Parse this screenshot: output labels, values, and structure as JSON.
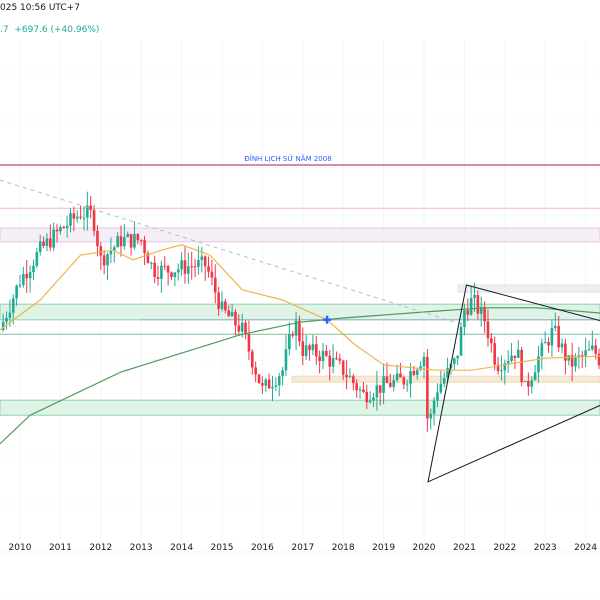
{
  "header": {
    "datetime": "025 10:56 UTC+7",
    "change_prefix": ".7",
    "change": "+697.6 (+40.96%)"
  },
  "colors": {
    "up": "#22ab94",
    "down": "#f23645",
    "ma_fast": "#f0b44c",
    "ma_slow": "#4c9a5c",
    "ath_line": "#b2185a",
    "ath_label": "#2962ff",
    "zone_green": "#dff3e6",
    "zone_pink": "#f5eef7",
    "zone_orange": "#f7d9a8",
    "triangle": "#131722",
    "trend_dashed": "#b8bcc6"
  },
  "chart_data": {
    "type": "candlestick",
    "title": "",
    "note": "relative index units, estimated; no price axis visible",
    "xlabel": "",
    "ylabel": "",
    "xlim": [
      2009.5,
      2025.0
    ],
    "ylim": [
      0,
      100
    ],
    "x_ticks": [
      "2010",
      "2011",
      "2012",
      "2013",
      "2014",
      "2015",
      "2016",
      "2017",
      "2018",
      "2019",
      "2020",
      "2021",
      "2022",
      "2023",
      "2024"
    ],
    "price_path": [
      [
        2009.5,
        45
      ],
      [
        2010.0,
        53.3
      ],
      [
        2010.5,
        58.3
      ],
      [
        2011.0,
        61.7
      ],
      [
        2011.5,
        64.5
      ],
      [
        2011.8,
        64.2
      ],
      [
        2012.0,
        56.7
      ],
      [
        2012.5,
        60
      ],
      [
        2013.0,
        60
      ],
      [
        2013.3,
        55
      ],
      [
        2013.7,
        55
      ],
      [
        2014.3,
        55.8
      ],
      [
        2014.6,
        55.8
      ],
      [
        2015.0,
        48.3
      ],
      [
        2015.5,
        45
      ],
      [
        2016.0,
        35
      ],
      [
        2016.5,
        38.3
      ],
      [
        2016.8,
        46.7
      ],
      [
        2017.0,
        41.7
      ],
      [
        2017.5,
        40.8
      ],
      [
        2018.0,
        38.3
      ],
      [
        2018.5,
        34.2
      ],
      [
        2019.0,
        35.8
      ],
      [
        2019.5,
        36.7
      ],
      [
        2020.0,
        40.8
      ],
      [
        2020.1,
        28.3
      ],
      [
        2020.3,
        35
      ],
      [
        2020.8,
        40
      ],
      [
        2021.0,
        48.3
      ],
      [
        2021.2,
        50
      ],
      [
        2021.5,
        46.7
      ],
      [
        2021.8,
        39.2
      ],
      [
        2022.3,
        41.7
      ],
      [
        2022.5,
        35
      ],
      [
        2022.8,
        40
      ],
      [
        2023.2,
        45
      ],
      [
        2023.6,
        39.2
      ],
      [
        2024.2,
        41.7
      ],
      [
        2024.5,
        38.3
      ],
      [
        2024.95,
        45
      ]
    ],
    "series": [
      {
        "name": "MA fast",
        "points": [
          [
            2009.5,
            45
          ],
          [
            2010.5,
            50
          ],
          [
            2011.5,
            57.5
          ],
          [
            2012.3,
            58.3
          ],
          [
            2012.8,
            56.7
          ],
          [
            2013.5,
            58.3
          ],
          [
            2014.0,
            59.2
          ],
          [
            2014.7,
            57.5
          ],
          [
            2015.5,
            51.7
          ],
          [
            2016.5,
            50
          ],
          [
            2017.6,
            46.7
          ],
          [
            2018.3,
            42.5
          ],
          [
            2019.0,
            39.2
          ],
          [
            2020.3,
            38.3
          ],
          [
            2021.2,
            38.3
          ],
          [
            2022.0,
            39.2
          ],
          [
            2023.0,
            40.3
          ],
          [
            2024.95,
            40.8
          ]
        ]
      },
      {
        "name": "MA slow",
        "points": [
          [
            2009.5,
            26
          ],
          [
            2010.25,
            30.8
          ],
          [
            2012.5,
            38
          ],
          [
            2015.45,
            44.2
          ],
          [
            2016.93,
            46.3
          ],
          [
            2018.0,
            47
          ],
          [
            2020.0,
            48
          ],
          [
            2021.5,
            48.7
          ],
          [
            2022.8,
            48.7
          ],
          [
            2024.95,
            47.5
          ]
        ]
      }
    ],
    "annotations": {
      "ath_label": "ĐỈNH LỊCH SỬ NĂM 2008",
      "ath_level": 72.5,
      "resistance_line": 65.3,
      "pink_zone": [
        59.7,
        62
      ],
      "green_zone_upper": [
        46.7,
        49.3
      ],
      "mid_line": 44.3,
      "orange_zone": [
        36.3,
        37.3
      ],
      "green_zone_lower": [
        30.8,
        33.3
      ],
      "grey_zone": [
        51.3,
        52.5
      ],
      "crossover_marker": [
        2017.6,
        46.7
      ],
      "triangle": [
        [
          2020.1,
          19.7
        ],
        [
          2021.05,
          52.5
        ],
        [
          2024.95,
          45.5
        ],
        [
          2024.95,
          34.2
        ]
      ],
      "dashed_trendline": [
        [
          2009.5,
          70
        ],
        [
          2021.0,
          45.8
        ]
      ]
    }
  }
}
